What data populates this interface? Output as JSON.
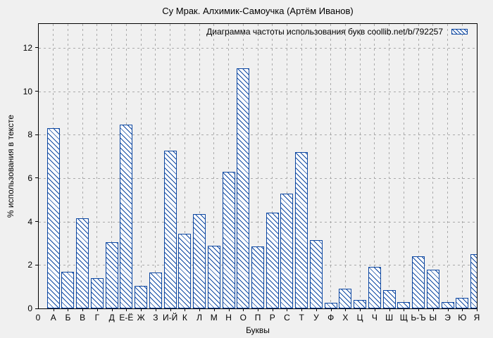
{
  "figure": {
    "title": "Су Мрак. Алхимик-Самоучка (Артём Иванов)",
    "x_axis_label": "Буквы",
    "y_axis_label": "% использования в тексте",
    "origin_tick_label": "0"
  },
  "legend": {
    "label": "Диаграмма частоты использования букв coollib.net/b/792257",
    "sample_icon": "hatched-box-icon"
  },
  "colors": {
    "bar_outline": "#0d47a1",
    "bar_fill": "#ffffff",
    "grid": "#aaaaaa",
    "frame": "#000000",
    "background": "#f0f0f0",
    "text": "#000000"
  },
  "chart_data": {
    "type": "bar",
    "title": "Су Мрак. Алхимик-Самоучка (Артём Иванов)",
    "legend_label": "Диаграмма частоты использования букв coollib.net/b/792257",
    "xlabel": "Буквы",
    "ylabel": "% использования в тексте",
    "x_origin_label": "0",
    "categories": [
      "А",
      "Б",
      "В",
      "Г",
      "Д",
      "Е-Ё",
      "Ж",
      "З",
      "И-Й",
      "К",
      "Л",
      "М",
      "Н",
      "О",
      "П",
      "Р",
      "С",
      "Т",
      "У",
      "Ф",
      "Х",
      "Ц",
      "Ч",
      "Ш",
      "Щ",
      "Ь-Ъ",
      "Ы",
      "Э",
      "Ю",
      "Я"
    ],
    "values": [
      8.3,
      1.7,
      4.15,
      1.4,
      3.05,
      8.45,
      1.05,
      1.65,
      7.25,
      3.45,
      4.35,
      2.9,
      6.3,
      11.05,
      2.85,
      4.4,
      5.3,
      7.2,
      3.15,
      0.25,
      0.9,
      0.4,
      1.9,
      0.85,
      0.3,
      2.4,
      1.8,
      0.3,
      0.5,
      2.5
    ],
    "ylim": [
      0,
      13.1
    ],
    "yticks": [
      0,
      2,
      4,
      6,
      8,
      10,
      12
    ],
    "grid": true,
    "legend_position": "top-right-inside",
    "bar_style": "diagonal-hatch"
  }
}
